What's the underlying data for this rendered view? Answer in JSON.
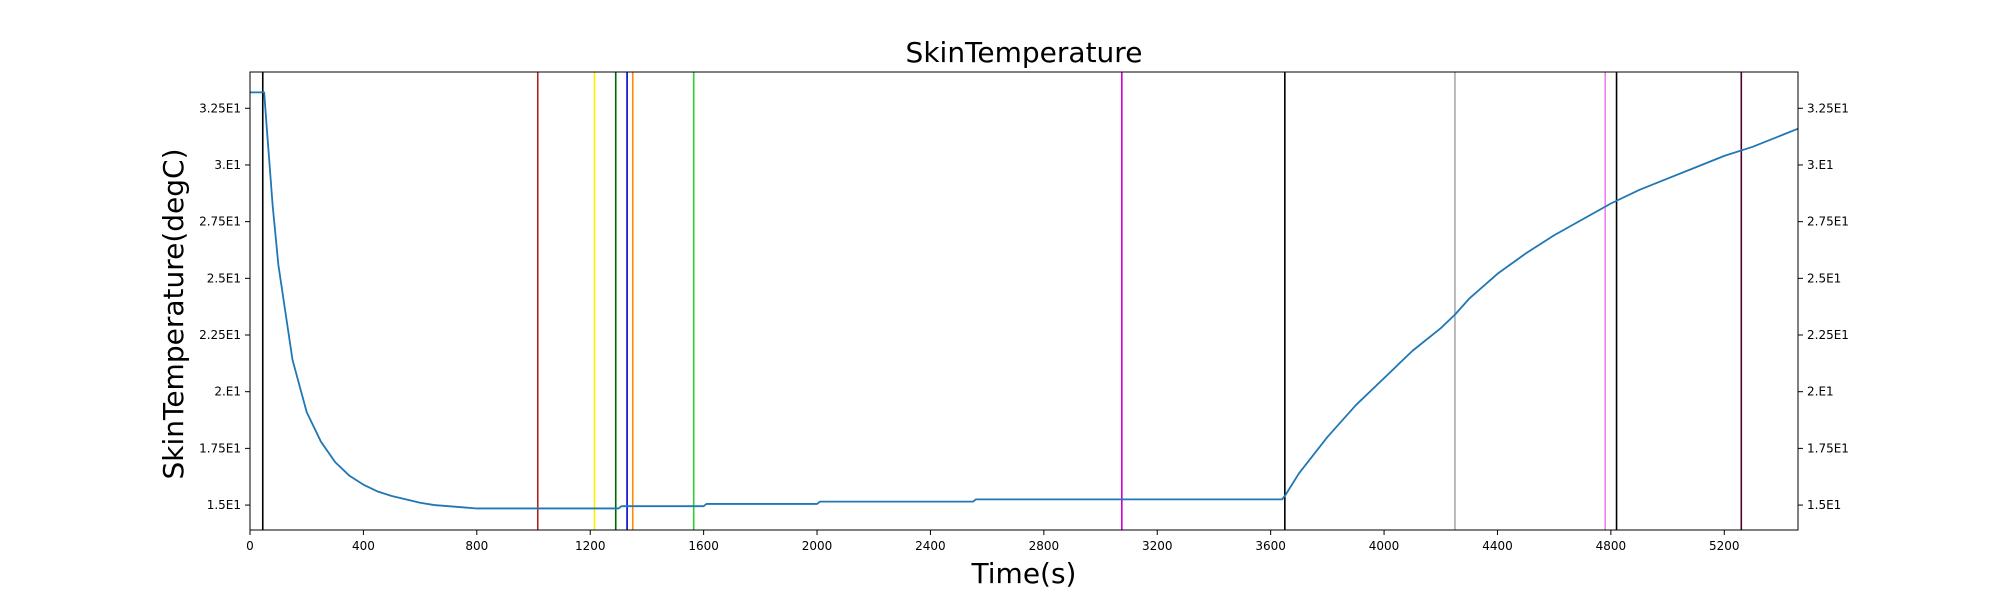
{
  "chart_data": {
    "type": "line",
    "title": "SkinTemperature",
    "xlabel": "Time(s)",
    "ylabel": "SkinTemperature(degC)",
    "xlim": [
      0,
      5460
    ],
    "ylim": [
      13.9,
      34.1
    ],
    "grid": false,
    "x_ticks": [
      0,
      400,
      800,
      1200,
      1600,
      2000,
      2400,
      2800,
      3200,
      3600,
      4000,
      4400,
      4800,
      5200
    ],
    "x_tick_labels": [
      "0",
      "400",
      "800",
      "1200",
      "1600",
      "2000",
      "2400",
      "2800",
      "3200",
      "3600",
      "4000",
      "4400",
      "4800",
      "5200"
    ],
    "y_ticks": [
      15,
      17.5,
      20,
      22.5,
      25,
      27.5,
      30,
      32.5
    ],
    "y_tick_labels": [
      "1.5E1",
      "1.75E1",
      "2.E1",
      "2.25E1",
      "2.5E1",
      "2.75E1",
      "3.E1",
      "3.25E1"
    ],
    "series": [
      {
        "color": "#1f77b4",
        "x": [
          0,
          50,
          60,
          80,
          100,
          150,
          200,
          250,
          300,
          350,
          400,
          450,
          500,
          550,
          600,
          650,
          700,
          750,
          800,
          900,
          1000,
          1100,
          1200,
          1300,
          1310,
          1400,
          1600,
          1610,
          1800,
          2000,
          2010,
          2400,
          2550,
          2560,
          3000,
          3200,
          3640,
          3650,
          3700,
          3800,
          3900,
          4000,
          4100,
          4200,
          4250,
          4300,
          4400,
          4500,
          4600,
          4700,
          4800,
          4900,
          5000,
          5100,
          5200,
          5300,
          5400,
          5460
        ],
        "y": [
          33.2,
          33.2,
          31.5,
          28.2,
          25.6,
          21.4,
          19.1,
          17.8,
          16.9,
          16.3,
          15.9,
          15.6,
          15.4,
          15.25,
          15.1,
          15.0,
          14.95,
          14.9,
          14.85,
          14.85,
          14.85,
          14.85,
          14.85,
          14.85,
          14.95,
          14.95,
          14.95,
          15.05,
          15.05,
          15.05,
          15.15,
          15.15,
          15.15,
          15.25,
          15.25,
          15.25,
          15.25,
          15.4,
          16.4,
          18.0,
          19.4,
          20.6,
          21.8,
          22.8,
          23.4,
          24.1,
          25.2,
          26.1,
          26.9,
          27.6,
          28.3,
          28.9,
          29.4,
          29.9,
          30.4,
          30.8,
          31.3,
          31.6
        ]
      }
    ],
    "vertical_lines": [
      {
        "x": 45,
        "color": "#000000"
      },
      {
        "x": 1015,
        "color": "#b22222"
      },
      {
        "x": 1215,
        "color": "#ffee00"
      },
      {
        "x": 1290,
        "color": "#006400"
      },
      {
        "x": 1330,
        "color": "#0000cd"
      },
      {
        "x": 1350,
        "color": "#ff8c00"
      },
      {
        "x": 1565,
        "color": "#32cd32"
      },
      {
        "x": 3075,
        "color": "#cc00cc"
      },
      {
        "x": 3650,
        "color": "#000000"
      },
      {
        "x": 4250,
        "color": "#a9a9a9"
      },
      {
        "x": 4780,
        "color": "#ee82ee"
      },
      {
        "x": 4820,
        "color": "#000000"
      },
      {
        "x": 5260,
        "color": "#4b0030"
      }
    ]
  }
}
